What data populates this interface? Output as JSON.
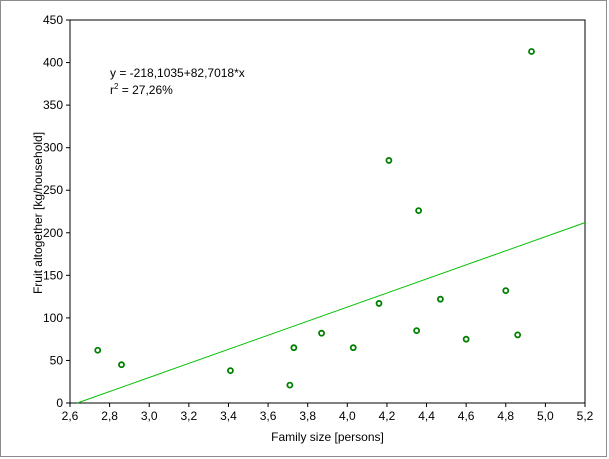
{
  "chart_data": {
    "type": "scatter",
    "title": "",
    "xlabel": "Family size [persons]",
    "ylabel": "Fruit altogether [kg/household]",
    "xlim": [
      2.6,
      5.2
    ],
    "ylim": [
      0,
      450
    ],
    "x_ticks": [
      2.6,
      2.8,
      3.0,
      3.2,
      3.4,
      3.6,
      3.8,
      4.0,
      4.2,
      4.4,
      4.6,
      4.8,
      5.0,
      5.2
    ],
    "x_tick_labels": [
      "2,6",
      "2,8",
      "3,0",
      "3,2",
      "3,4",
      "3,6",
      "3,8",
      "4,0",
      "4,2",
      "4,4",
      "4,6",
      "4,8",
      "5,0",
      "5,2"
    ],
    "y_ticks": [
      0,
      50,
      100,
      150,
      200,
      250,
      300,
      350,
      400,
      450
    ],
    "y_tick_labels": [
      "0",
      "50",
      "100",
      "150",
      "200",
      "250",
      "300",
      "350",
      "400",
      "450"
    ],
    "grid": false,
    "points": [
      {
        "x": 2.74,
        "y": 62
      },
      {
        "x": 2.86,
        "y": 45
      },
      {
        "x": 3.41,
        "y": 38
      },
      {
        "x": 3.71,
        "y": 21
      },
      {
        "x": 3.73,
        "y": 65
      },
      {
        "x": 3.87,
        "y": 82
      },
      {
        "x": 4.03,
        "y": 65
      },
      {
        "x": 4.16,
        "y": 117
      },
      {
        "x": 4.21,
        "y": 285
      },
      {
        "x": 4.35,
        "y": 85
      },
      {
        "x": 4.36,
        "y": 226
      },
      {
        "x": 4.47,
        "y": 122
      },
      {
        "x": 4.6,
        "y": 75
      },
      {
        "x": 4.8,
        "y": 132
      },
      {
        "x": 4.86,
        "y": 80
      },
      {
        "x": 4.93,
        "y": 413
      }
    ],
    "regression": {
      "intercept": -218.1035,
      "slope": 82.7018,
      "r2": 27.26
    },
    "point_color": "#008000",
    "line_color": "#00c000",
    "annotation": {
      "equation": "y =  -218,1035+82,7018*x",
      "r_label": "r",
      "r_superscript": "2",
      "r_value": " =  27,26%"
    }
  }
}
